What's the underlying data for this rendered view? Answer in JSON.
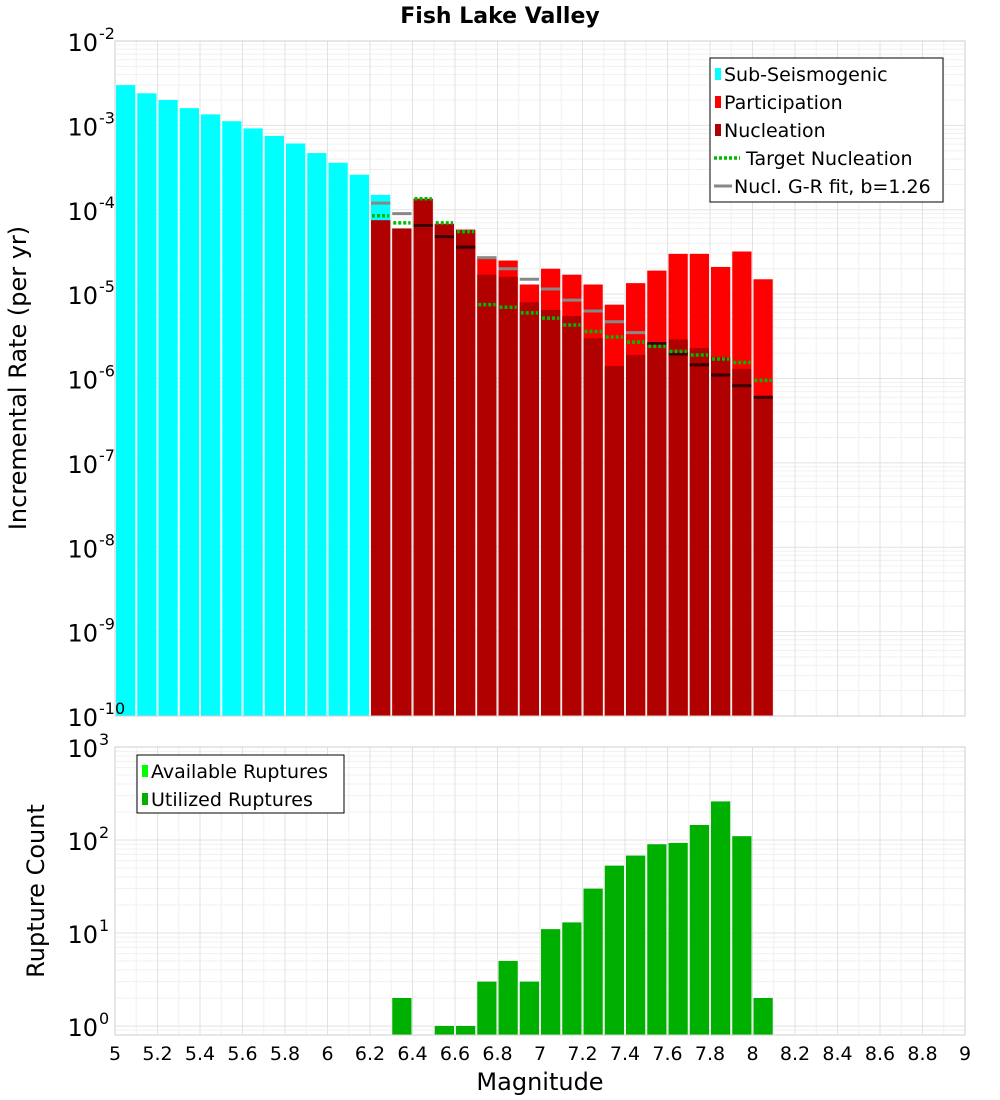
{
  "chart_data": [
    {
      "type": "bar",
      "title": "Fish Lake Valley",
      "xlabel": "Magnitude",
      "ylabel": "Incremental Rate (per yr)",
      "yscale": "log",
      "xlim": [
        5,
        9
      ],
      "ylim": [
        1e-10,
        0.01
      ],
      "bin_width": 0.1,
      "x_ticks": [
        "5",
        "5.2",
        "5.4",
        "5.6",
        "5.8",
        "6",
        "6.2",
        "6.4",
        "6.6",
        "6.8",
        "7",
        "7.2",
        "7.4",
        "7.6",
        "7.8",
        "8",
        "8.2",
        "8.4",
        "8.6",
        "8.8",
        "9"
      ],
      "y_tick_exponents": [
        "-10",
        "-9",
        "-8",
        "-7",
        "-6",
        "-5",
        "-4",
        "-3",
        "-2"
      ],
      "y_tick_base": "10",
      "legend_position": "top-right",
      "legend": [
        {
          "label": "Sub-Seismogenic",
          "color": "#00ffff",
          "style": "bar"
        },
        {
          "label": "Participation",
          "color": "#ff0000",
          "style": "bar"
        },
        {
          "label": "Nucleation",
          "color": "#b00000",
          "style": "bar"
        },
        {
          "label": "Target Nucleation",
          "color": "#00bb00",
          "style": "dotted-line"
        },
        {
          "label": "Nucl. G-R fit, b=1.26",
          "color": "#888888",
          "style": "line"
        }
      ],
      "series": [
        {
          "name": "Sub-Seismogenic",
          "color": "#00ffff",
          "x": [
            5.0,
            5.1,
            5.2,
            5.3,
            5.4,
            5.5,
            5.6,
            5.7,
            5.8,
            5.9,
            6.0,
            6.1,
            6.2
          ],
          "values": [
            0.003,
            0.0024,
            0.002,
            0.0016,
            0.00135,
            0.00112,
            0.00092,
            0.00075,
            0.00061,
            0.00047,
            0.00036,
            0.00026,
            0.00015
          ]
        },
        {
          "name": "Participation",
          "color": "#ff0000",
          "x": [
            6.2,
            6.3,
            6.4,
            6.5,
            6.6,
            6.7,
            6.8,
            6.9,
            7.0,
            7.1,
            7.2,
            7.3,
            7.4,
            7.5,
            7.6,
            7.7,
            7.8,
            7.9,
            8.0
          ],
          "values": [
            7.5e-05,
            6e-05,
            0.000135,
            6.8e-05,
            5.8e-05,
            2.8e-05,
            2.5e-05,
            1.3e-05,
            2e-05,
            1.7e-05,
            1.3e-05,
            7.5e-06,
            1.35e-05,
            1.9e-05,
            3e-05,
            3e-05,
            2.1e-05,
            3.2e-05,
            1.5e-05
          ]
        },
        {
          "name": "Nucleation",
          "color": "#b00000",
          "x": [
            6.2,
            6.3,
            6.4,
            6.5,
            6.6,
            6.7,
            6.8,
            6.9,
            7.0,
            7.1,
            7.2,
            7.3,
            7.4,
            7.5,
            7.6,
            7.7,
            7.8,
            7.9,
            8.0
          ],
          "values": [
            7.5e-05,
            6e-05,
            0.000135,
            6.8e-05,
            5.8e-05,
            1.7e-05,
            1.6e-05,
            8e-06,
            6.5e-06,
            5.5e-06,
            3e-06,
            1.4e-06,
            1.9e-06,
            2.6e-06,
            2.9e-06,
            2.3e-06,
            1.8e-06,
            1.3e-06,
            6e-07
          ]
        },
        {
          "name": "Target Nucleation",
          "color": "#00bb00",
          "x": [
            6.2,
            6.3,
            6.4,
            6.5,
            6.6,
            6.7,
            6.8,
            6.9,
            7.0,
            7.1,
            7.2,
            7.3,
            7.4,
            7.5,
            7.6,
            7.7,
            7.8,
            7.9,
            8.0
          ],
          "values": [
            8.5e-05,
            7e-05,
            0.000135,
            7e-05,
            5.5e-05,
            7.5e-06,
            7e-06,
            6e-06,
            5.2e-06,
            4.3e-06,
            3.6e-06,
            3.1e-06,
            2.7e-06,
            2.4e-06,
            2.1e-06,
            1.9e-06,
            1.7e-06,
            1.55e-06,
            9.5e-07
          ]
        },
        {
          "name": "Nucl. G-R fit, b=1.26",
          "color": "#888888",
          "x": [
            6.2,
            6.3,
            6.4,
            6.5,
            6.6,
            6.7,
            6.8,
            6.9,
            7.0,
            7.1,
            7.2,
            7.3,
            7.4,
            7.5,
            7.6,
            7.7,
            7.8,
            7.9,
            8.0
          ],
          "values": [
            0.00012,
            9e-05,
            6.5e-05,
            4.8e-05,
            3.6e-05,
            2.7e-05,
            2e-05,
            1.5e-05,
            1.15e-05,
            8.5e-06,
            6.3e-06,
            4.7e-06,
            3.5e-06,
            2.6e-06,
            1.95e-06,
            1.45e-06,
            1.1e-06,
            8.2e-07,
            6e-07
          ]
        }
      ]
    },
    {
      "type": "bar",
      "title": "",
      "xlabel": "Magnitude",
      "ylabel": "Rupture Count",
      "yscale": "log",
      "xlim": [
        5,
        9
      ],
      "ylim": [
        0.8,
        1000
      ],
      "bin_width": 0.1,
      "y_tick_exponents": [
        "0",
        "1",
        "2",
        "3"
      ],
      "y_tick_base": "10",
      "legend_position": "top-left",
      "legend": [
        {
          "label": "Available Ruptures",
          "color": "#00ff00",
          "style": "bar"
        },
        {
          "label": "Utilized Ruptures",
          "color": "#00b000",
          "style": "bar"
        }
      ],
      "series": [
        {
          "name": "Utilized Ruptures",
          "color": "#00b000",
          "x": [
            6.3,
            6.5,
            6.6,
            6.7,
            6.8,
            6.9,
            7.0,
            7.1,
            7.2,
            7.3,
            7.4,
            7.5,
            7.6,
            7.7,
            7.8,
            7.9,
            8.0
          ],
          "values": [
            2,
            1,
            1,
            3,
            5,
            3,
            11,
            13,
            30,
            53,
            68,
            90,
            93,
            145,
            260,
            110,
            2
          ]
        }
      ]
    }
  ]
}
